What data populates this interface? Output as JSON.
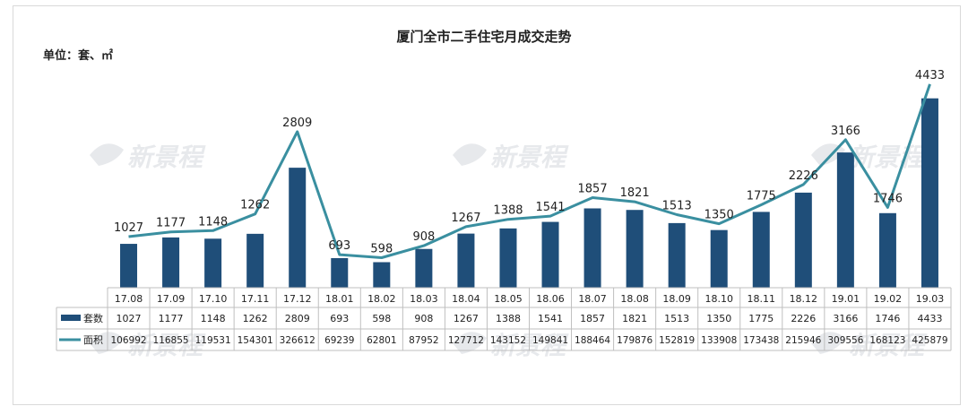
{
  "chart_data": {
    "type": "bar",
    "title": "厦门全市二手住宅月成交走势",
    "unit_label": "单位：套、㎡",
    "categories": [
      "17.08",
      "17.09",
      "17.10",
      "17.11",
      "17.12",
      "18.01",
      "18.02",
      "18.03",
      "18.04",
      "18.05",
      "18.06",
      "18.07",
      "18.08",
      "18.09",
      "18.10",
      "18.11",
      "18.12",
      "19.01",
      "19.02",
      "19.03"
    ],
    "series": [
      {
        "name": "套数",
        "type": "bar",
        "color": "#1f4e79",
        "values": [
          1027,
          1177,
          1148,
          1262,
          2809,
          693,
          598,
          908,
          1267,
          1388,
          1541,
          1857,
          1821,
          1513,
          1350,
          1775,
          2226,
          3166,
          1746,
          4433
        ]
      },
      {
        "name": "面积",
        "type": "line",
        "color": "#3a8fa0",
        "values": [
          106992,
          116855,
          119531,
          154301,
          326612,
          69239,
          62801,
          87952,
          127712,
          143152,
          149841,
          188464,
          179876,
          152819,
          133908,
          173438,
          215946,
          309556,
          168123,
          425879
        ]
      }
    ],
    "ylim_bars": [
      0,
      4700
    ],
    "ylim_line": [
      0,
      452000
    ],
    "data_table": true,
    "grid": false,
    "watermark": "新景程"
  }
}
